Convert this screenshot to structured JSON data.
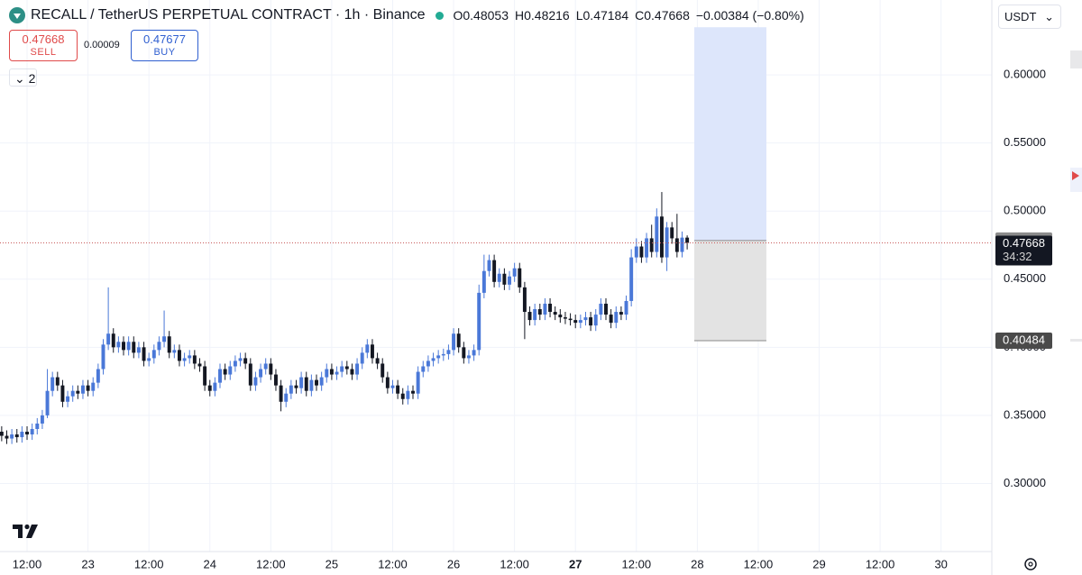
{
  "chart_data": {
    "type": "candlestick",
    "title": "RECALL / TetherUS PERPETUAL CONTRACT · 1h · Binance",
    "legend_labels": [
      "O",
      "H",
      "L",
      "C"
    ],
    "change_label": "−0.00384 (−0.80%)",
    "up_color": "#4a78d8",
    "down_color": "#131722",
    "open": [
      0.338,
      0.335,
      0.333,
      0.336,
      0.334,
      0.338,
      0.336,
      0.34,
      0.344,
      0.35,
      0.368,
      0.378,
      0.372,
      0.36,
      0.364,
      0.368,
      0.366,
      0.372,
      0.368,
      0.374,
      0.384,
      0.402,
      0.41,
      0.4,
      0.404,
      0.398,
      0.404,
      0.396,
      0.4,
      0.39,
      0.392,
      0.398,
      0.404,
      0.408,
      0.396,
      0.398,
      0.39,
      0.392,
      0.394,
      0.388,
      0.386,
      0.372,
      0.368,
      0.374,
      0.384,
      0.38,
      0.386,
      0.39,
      0.392,
      0.388,
      0.372,
      0.378,
      0.384,
      0.388,
      0.38,
      0.372,
      0.36,
      0.366,
      0.372,
      0.37,
      0.378,
      0.368,
      0.376,
      0.372,
      0.378,
      0.384,
      0.38,
      0.382,
      0.386,
      0.384,
      0.38,
      0.388,
      0.396,
      0.402,
      0.392,
      0.388,
      0.378,
      0.37,
      0.372,
      0.366,
      0.362,
      0.368,
      0.366,
      0.382,
      0.386,
      0.39,
      0.392,
      0.394,
      0.395,
      0.398,
      0.41,
      0.4,
      0.392,
      0.394,
      0.398,
      0.44,
      0.456,
      0.464,
      0.448,
      0.454,
      0.446,
      0.452,
      0.458,
      0.444,
      0.426,
      0.42,
      0.428,
      0.424,
      0.432,
      0.426,
      0.424,
      0.422,
      0.421,
      0.42,
      0.418,
      0.42,
      0.422,
      0.416,
      0.424,
      0.432,
      0.424,
      0.418,
      0.426,
      0.424,
      0.434,
      0.466,
      0.474,
      0.466,
      0.48,
      0.47,
      0.496,
      0.466,
      0.488,
      0.48,
      0.47,
      0.48053
    ],
    "high": [
      0.342,
      0.339,
      0.34,
      0.34,
      0.342,
      0.342,
      0.344,
      0.348,
      0.354,
      0.384,
      0.382,
      0.382,
      0.376,
      0.368,
      0.372,
      0.372,
      0.376,
      0.376,
      0.378,
      0.388,
      0.406,
      0.444,
      0.414,
      0.408,
      0.408,
      0.408,
      0.408,
      0.404,
      0.404,
      0.396,
      0.402,
      0.408,
      0.427,
      0.412,
      0.402,
      0.402,
      0.396,
      0.398,
      0.398,
      0.392,
      0.39,
      0.376,
      0.378,
      0.388,
      0.388,
      0.39,
      0.394,
      0.396,
      0.396,
      0.392,
      0.382,
      0.388,
      0.392,
      0.392,
      0.384,
      0.376,
      0.37,
      0.376,
      0.376,
      0.382,
      0.382,
      0.38,
      0.38,
      0.382,
      0.388,
      0.388,
      0.386,
      0.39,
      0.39,
      0.388,
      0.392,
      0.4,
      0.406,
      0.406,
      0.396,
      0.392,
      0.382,
      0.376,
      0.376,
      0.37,
      0.372,
      0.372,
      0.386,
      0.39,
      0.394,
      0.396,
      0.398,
      0.399,
      0.402,
      0.414,
      0.414,
      0.404,
      0.398,
      0.402,
      0.446,
      0.468,
      0.468,
      0.468,
      0.458,
      0.458,
      0.456,
      0.462,
      0.462,
      0.448,
      0.43,
      0.432,
      0.432,
      0.436,
      0.436,
      0.43,
      0.428,
      0.426,
      0.425,
      0.424,
      0.424,
      0.426,
      0.426,
      0.428,
      0.436,
      0.436,
      0.428,
      0.43,
      0.43,
      0.438,
      0.472,
      0.48,
      0.478,
      0.484,
      0.49,
      0.502,
      0.514,
      0.492,
      0.492,
      0.498,
      0.485,
      0.48216
    ],
    "low": [
      0.331,
      0.329,
      0.329,
      0.33,
      0.33,
      0.332,
      0.332,
      0.336,
      0.34,
      0.348,
      0.364,
      0.368,
      0.356,
      0.356,
      0.36,
      0.362,
      0.362,
      0.364,
      0.364,
      0.37,
      0.38,
      0.398,
      0.396,
      0.396,
      0.394,
      0.394,
      0.392,
      0.392,
      0.386,
      0.386,
      0.388,
      0.394,
      0.4,
      0.392,
      0.392,
      0.386,
      0.386,
      0.388,
      0.384,
      0.382,
      0.368,
      0.364,
      0.364,
      0.37,
      0.376,
      0.376,
      0.382,
      0.386,
      0.384,
      0.368,
      0.368,
      0.374,
      0.38,
      0.376,
      0.368,
      0.353,
      0.356,
      0.362,
      0.366,
      0.366,
      0.364,
      0.364,
      0.368,
      0.368,
      0.374,
      0.376,
      0.376,
      0.378,
      0.38,
      0.376,
      0.376,
      0.384,
      0.392,
      0.388,
      0.384,
      0.374,
      0.366,
      0.366,
      0.362,
      0.358,
      0.358,
      0.362,
      0.362,
      0.378,
      0.382,
      0.386,
      0.388,
      0.39,
      0.391,
      0.394,
      0.396,
      0.388,
      0.388,
      0.39,
      0.394,
      0.436,
      0.452,
      0.444,
      0.444,
      0.442,
      0.442,
      0.448,
      0.44,
      0.406,
      0.416,
      0.416,
      0.42,
      0.42,
      0.422,
      0.42,
      0.418,
      0.417,
      0.416,
      0.414,
      0.414,
      0.416,
      0.412,
      0.412,
      0.42,
      0.42,
      0.414,
      0.414,
      0.42,
      0.42,
      0.43,
      0.462,
      0.462,
      0.462,
      0.466,
      0.466,
      0.462,
      0.456,
      0.476,
      0.466,
      0.466,
      0.47184
    ],
    "close": [
      0.335,
      0.333,
      0.336,
      0.334,
      0.338,
      0.336,
      0.34,
      0.344,
      0.35,
      0.368,
      0.378,
      0.372,
      0.36,
      0.364,
      0.368,
      0.366,
      0.372,
      0.368,
      0.374,
      0.384,
      0.402,
      0.41,
      0.4,
      0.404,
      0.398,
      0.404,
      0.396,
      0.4,
      0.39,
      0.392,
      0.398,
      0.404,
      0.408,
      0.396,
      0.398,
      0.39,
      0.392,
      0.394,
      0.388,
      0.386,
      0.372,
      0.368,
      0.374,
      0.384,
      0.38,
      0.386,
      0.39,
      0.392,
      0.388,
      0.372,
      0.378,
      0.384,
      0.388,
      0.38,
      0.372,
      0.36,
      0.366,
      0.372,
      0.37,
      0.378,
      0.368,
      0.376,
      0.372,
      0.378,
      0.384,
      0.38,
      0.382,
      0.386,
      0.384,
      0.38,
      0.388,
      0.396,
      0.402,
      0.392,
      0.388,
      0.378,
      0.37,
      0.372,
      0.366,
      0.362,
      0.368,
      0.366,
      0.382,
      0.386,
      0.39,
      0.392,
      0.394,
      0.395,
      0.398,
      0.41,
      0.4,
      0.392,
      0.394,
      0.398,
      0.44,
      0.456,
      0.464,
      0.448,
      0.454,
      0.446,
      0.452,
      0.458,
      0.444,
      0.426,
      0.42,
      0.428,
      0.424,
      0.432,
      0.426,
      0.424,
      0.422,
      0.421,
      0.42,
      0.418,
      0.42,
      0.422,
      0.416,
      0.424,
      0.432,
      0.424,
      0.418,
      0.426,
      0.424,
      0.434,
      0.466,
      0.474,
      0.466,
      0.48,
      0.47,
      0.496,
      0.466,
      0.488,
      0.48,
      0.47,
      0.48053,
      0.47668
    ],
    "xlim": [
      -0.33,
      195
    ],
    "xticks": [
      {
        "value": 5,
        "label": "12:00"
      },
      {
        "value": 17,
        "label": "23"
      },
      {
        "value": 29,
        "label": "12:00"
      },
      {
        "value": 41,
        "label": "24"
      },
      {
        "value": 53,
        "label": "12:00"
      },
      {
        "value": 65,
        "label": "25"
      },
      {
        "value": 77,
        "label": "12:00"
      },
      {
        "value": 89,
        "label": "26"
      },
      {
        "value": 101,
        "label": "12:00"
      },
      {
        "value": 113,
        "label": "27"
      },
      {
        "value": 125,
        "label": "12:00"
      },
      {
        "value": 137,
        "label": "28"
      },
      {
        "value": 149,
        "label": "12:00"
      },
      {
        "value": 161,
        "label": "29"
      },
      {
        "value": 173,
        "label": "12:00"
      },
      {
        "value": 185,
        "label": "30"
      }
    ],
    "ylim": [
      0.25,
      0.655
    ],
    "yticks": [
      {
        "value": 0.3,
        "label": "0.30000"
      },
      {
        "value": 0.35,
        "label": "0.35000"
      },
      {
        "value": 0.4,
        "label": "0.40000"
      },
      {
        "value": 0.45,
        "label": "0.45000"
      },
      {
        "value": 0.5,
        "label": "0.50000"
      },
      {
        "value": 0.55,
        "label": "0.55000"
      },
      {
        "value": 0.6,
        "label": "0.60000"
      }
    ],
    "grid": true,
    "countdown": "34:32",
    "position": {
      "start": 136.4,
      "end": 150.6,
      "target": 0.635,
      "entry": 0.47838,
      "stop": 0.40484
    }
  },
  "toolbar": {
    "sell_price": "0.47668",
    "sell_label": "SELL",
    "spread": "0.00009",
    "buy_price": "0.47677",
    "buy_label": "BUY",
    "intervals": "2",
    "currency": "USDT"
  }
}
